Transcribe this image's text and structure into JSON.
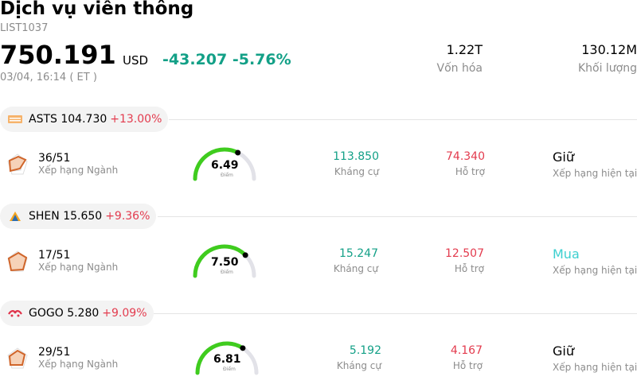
{
  "header": {
    "title": "Dịch vụ viễn thông",
    "code": "LIST1037",
    "price": "750.191",
    "currency": "USD",
    "change": "-43.207",
    "change_pct": "-5.76%",
    "time": "03/04, 16:14  ( ET )",
    "market_cap": {
      "value": "1.22T",
      "label": "Vốn hóa"
    },
    "volume": {
      "value": "130.12M",
      "label": "Khối lượng"
    }
  },
  "stocks": [
    {
      "ticker": "ASTS",
      "price": "104.730",
      "change_pct": "+13.00%",
      "logo": "asts-logo",
      "rank": "36/51",
      "rank_label": "Xếp hạng Ngành",
      "score": "6.49",
      "score_label": "Điểm",
      "score_frac": 0.649,
      "resistance": "113.850",
      "resistance_label": "Kháng cự",
      "support": "74.340",
      "support_label": "Hỗ trợ",
      "rating": "Giữ",
      "rating_label": "Xếp hạng hiện tại"
    },
    {
      "ticker": "SHEN",
      "price": "15.650",
      "change_pct": "+9.36%",
      "logo": "shen-logo",
      "rank": "17/51",
      "rank_label": "Xếp hạng Ngành",
      "score": "7.50",
      "score_label": "Điểm",
      "score_frac": 0.75,
      "resistance": "15.247",
      "resistance_label": "Kháng cự",
      "support": "12.507",
      "support_label": "Hỗ trợ",
      "rating": "Mua",
      "rating_label": "Xếp hạng hiện tại"
    },
    {
      "ticker": "GOGO",
      "price": "5.280",
      "change_pct": "+9.09%",
      "logo": "gogo-logo",
      "rank": "29/51",
      "rank_label": "Xếp hạng Ngành",
      "score": "6.81",
      "score_label": "Điểm",
      "score_frac": 0.681,
      "resistance": "5.192",
      "resistance_label": "Kháng cự",
      "support": "4.167",
      "support_label": "Hỗ trợ",
      "rating": "Giữ",
      "rating_label": "Xếp hạng hiện tại"
    }
  ],
  "colors": {
    "up": "#13a087",
    "down": "#e33b4e",
    "gauge": "#3fcc1e",
    "buy": "#3ccfcf"
  }
}
